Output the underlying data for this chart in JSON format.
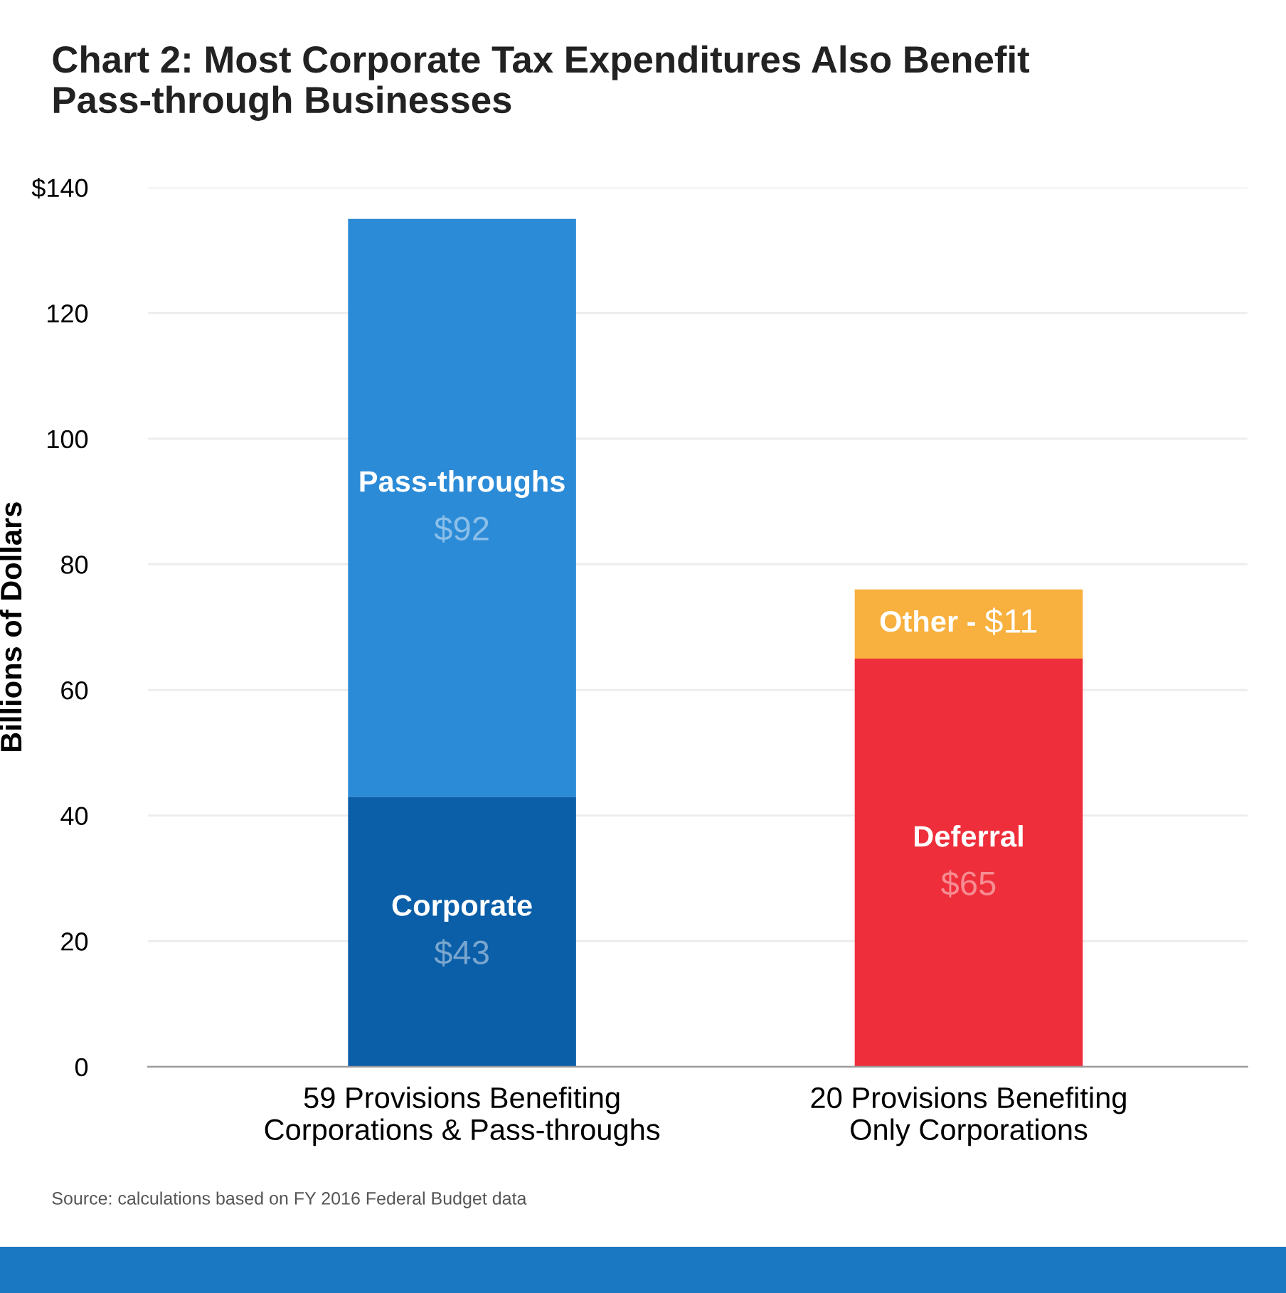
{
  "chart_data": {
    "type": "bar",
    "stacked": true,
    "title": "Chart 2: Most Corporate Tax Expenditures Also Benefit\nPass-through Businesses",
    "ylabel": "Billions of Dollars",
    "categories": [
      "59 Provisions Benefiting\nCorporations & Pass-throughs",
      "20 Provisions Benefiting\nOnly Corporations"
    ],
    "series": [
      {
        "colors": [
          "#0b5ea8",
          "#ee2f3b"
        ],
        "values": [
          43,
          65
        ],
        "value_labels": [
          "$43",
          "$65"
        ]
      },
      {
        "colors": [
          "#2c8bd7",
          "#f8b03e"
        ],
        "values": [
          92,
          11
        ],
        "value_labels": [
          "$92",
          "$11"
        ]
      }
    ],
    "ylim": [
      0,
      140
    ],
    "yticks": [
      0,
      20,
      40,
      60,
      80,
      100,
      120,
      {
        "value": 140,
        "label": "$140"
      }
    ],
    "grid": "y",
    "annotations": [
      "Corporate",
      "Deferral",
      "Pass-throughs",
      "Other -",
      "Source: calculations based on FY 2016 Federal Budget data"
    ]
  }
}
